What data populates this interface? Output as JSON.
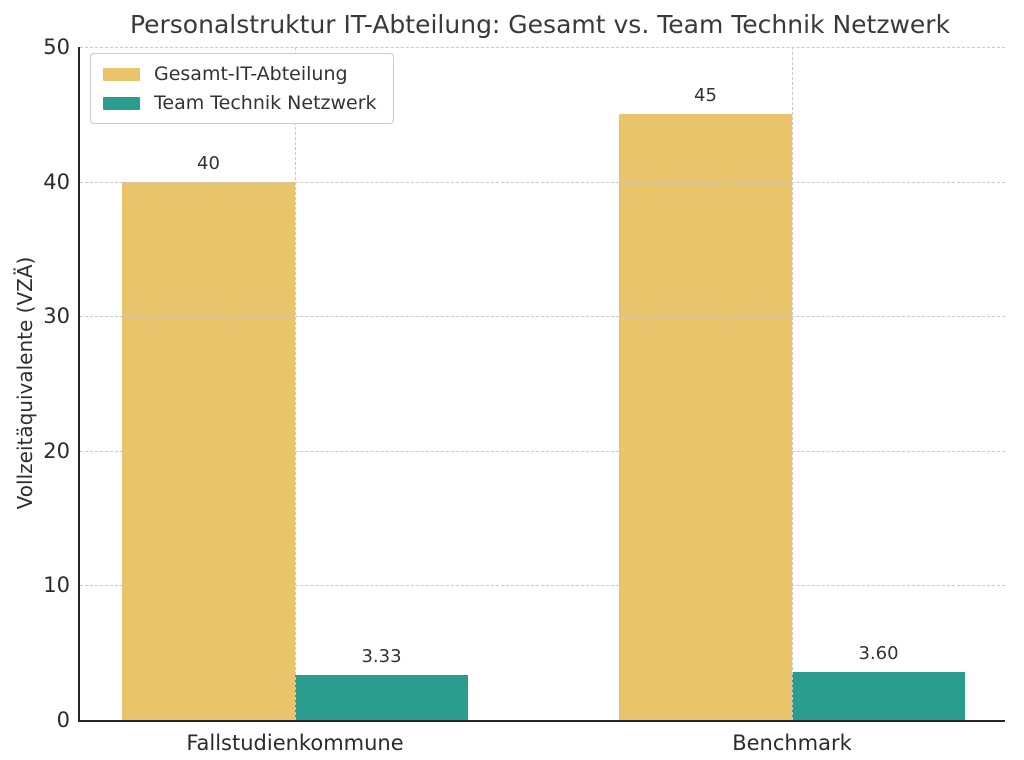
{
  "title": "Personalstruktur IT-Abteilung: Gesamt vs. Team Technik Netzwerk",
  "chart_data": {
    "type": "bar",
    "categories": [
      "Fallstudienkommune",
      "Benchmark"
    ],
    "series": [
      {
        "name": "Gesamt-IT-Abteilung",
        "color": "#e9c46a",
        "values": [
          40,
          45
        ],
        "value_labels": [
          "40",
          "45"
        ]
      },
      {
        "name": "Team Technik Netzwerk",
        "color": "#2a9d8f",
        "values": [
          3.33,
          3.6
        ],
        "value_labels": [
          "3.33",
          "3.60"
        ]
      }
    ],
    "xlabel": "",
    "ylabel": "Vollzeitäquivalente (VZÄ)",
    "ylim": [
      0,
      50
    ],
    "yticks": [
      0,
      10,
      20,
      30,
      40,
      50
    ],
    "grid": true,
    "grid_style": "dashed",
    "legend_position": "upper left"
  },
  "colors": {
    "background": "#ffffff",
    "grid": "#c9c9c9",
    "spine": "#262626",
    "text": "#2b2b2b",
    "title": "#3a3a3a"
  }
}
